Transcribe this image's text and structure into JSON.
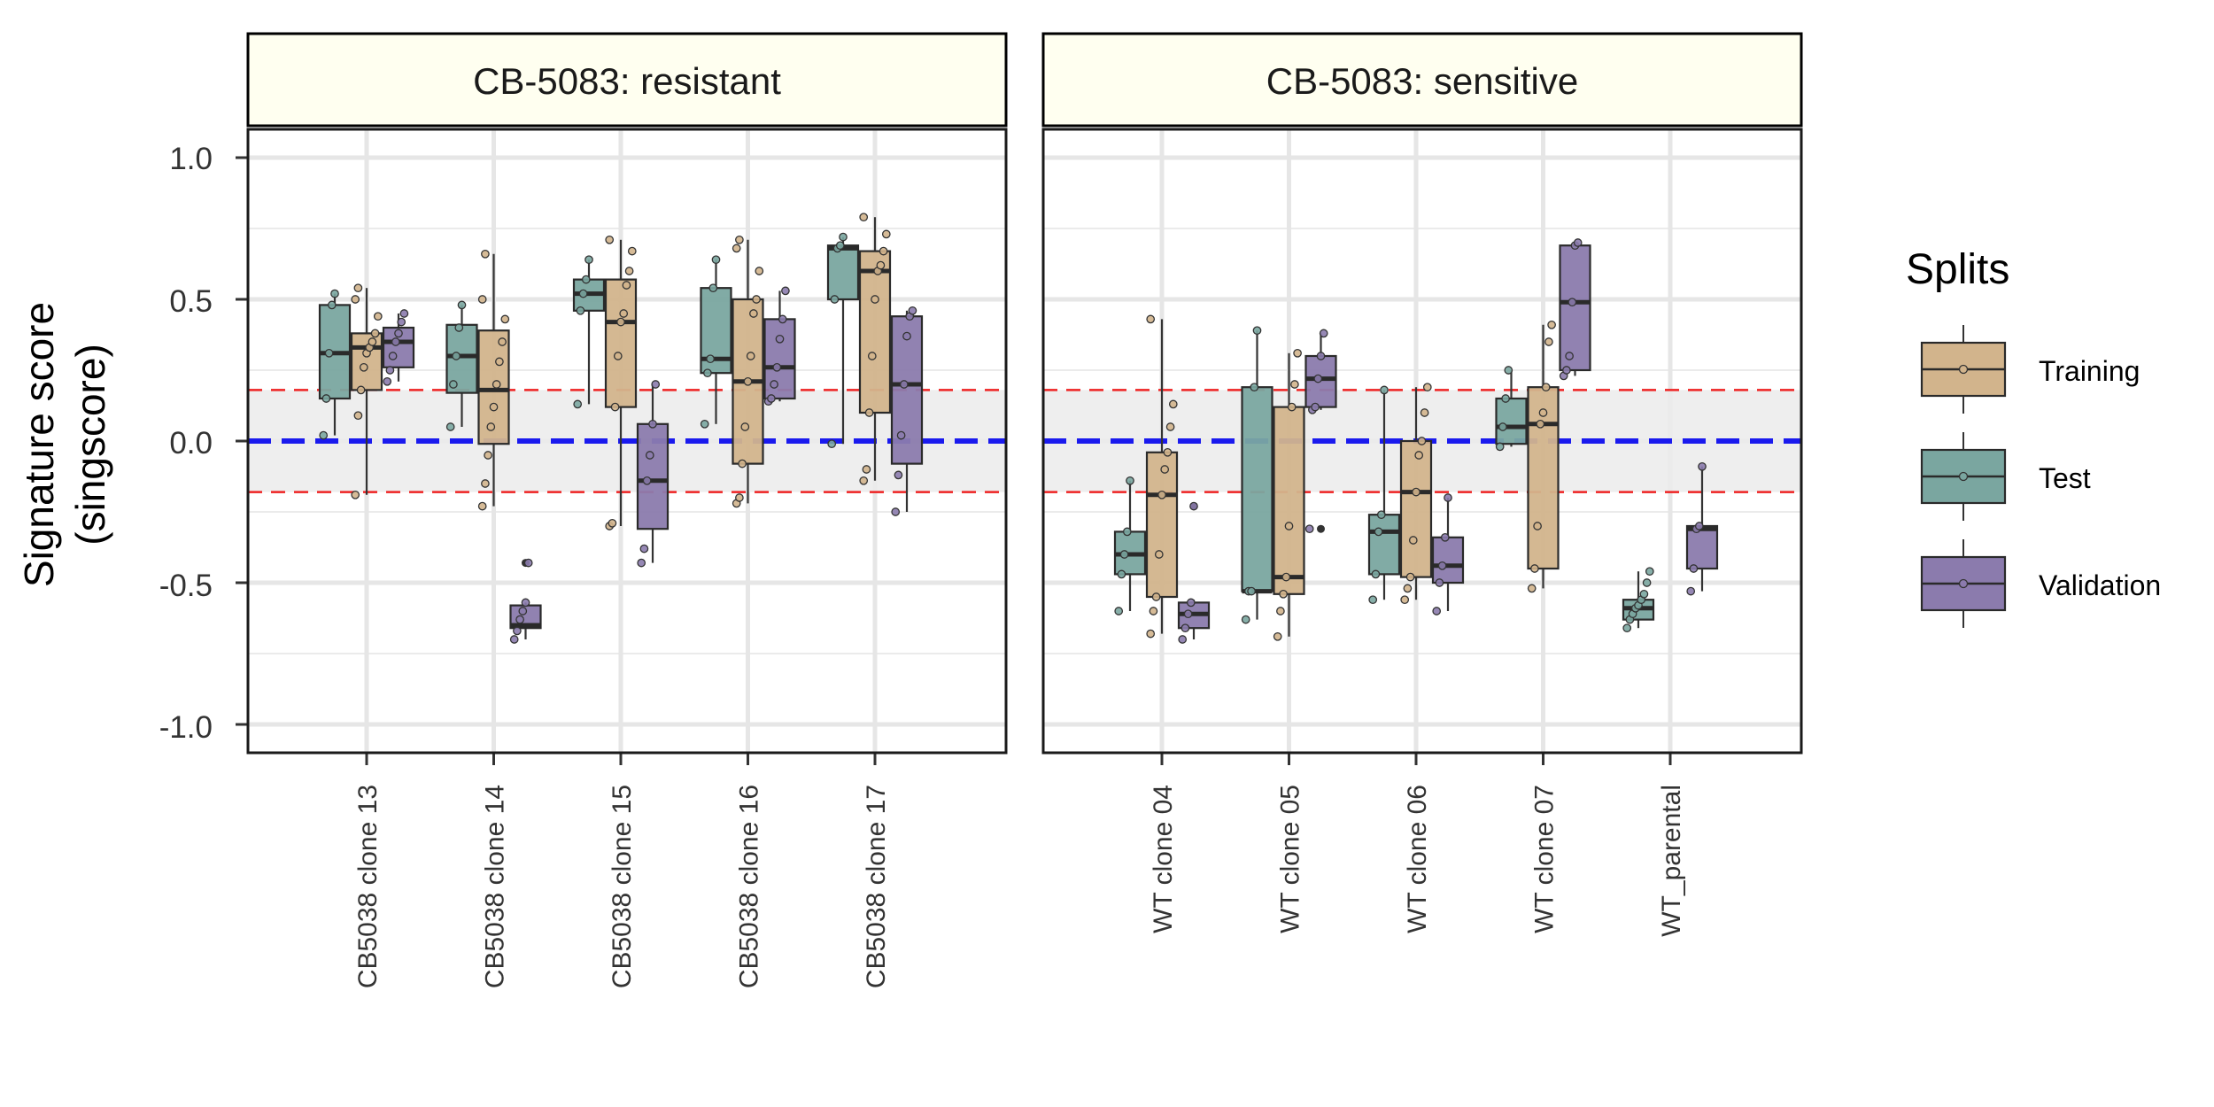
{
  "chart_data": {
    "type": "box",
    "ylabel": "Signature score\n(singscore)",
    "ylabel_lines": [
      "Signature score",
      "(singscore)"
    ],
    "ylim": [
      -1.1,
      1.1
    ],
    "yticks": [
      1.0,
      0.5,
      0.0,
      -0.5,
      -1.0
    ],
    "ytick_labels": [
      "1.0",
      "0.5",
      "0.0",
      "-0.5",
      "-1.0"
    ],
    "reference_band": [
      -0.18,
      0.18
    ],
    "reference_line": 0,
    "legend": {
      "title": "Splits",
      "position": "right",
      "items": [
        {
          "key": "training",
          "label": "Training"
        },
        {
          "key": "test",
          "label": "Test"
        },
        {
          "key": "validation",
          "label": "Validation"
        }
      ]
    },
    "colors": {
      "training": "#d2b48c",
      "test": "#7aa6a0",
      "validation": "#8b7bad",
      "band": "#ebebeb",
      "reference_line": "#1a1aee",
      "band_edges": "#ee2222",
      "strip": "#fffff0"
    },
    "split_order": [
      "test",
      "training",
      "validation"
    ],
    "panels": [
      {
        "title": "CB-5083: resistant",
        "categories": [
          "CB5038 clone 13",
          "CB5038 clone 14",
          "CB5038 clone 15",
          "CB5038 clone 16",
          "CB5038 clone 17"
        ],
        "groups": [
          {
            "test": {
              "box": [
                0.15,
                0.31,
                0.48
              ],
              "whisker": [
                0.02,
                0.52
              ],
              "points": [
                0.02,
                0.15,
                0.31,
                0.48,
                0.52
              ]
            },
            "training": {
              "box": [
                0.18,
                0.33,
                0.38
              ],
              "whisker": [
                -0.19,
                0.54
              ],
              "points": [
                -0.19,
                0.09,
                0.18,
                0.26,
                0.31,
                0.33,
                0.35,
                0.38,
                0.44,
                0.5,
                0.54
              ]
            },
            "validation": {
              "box": [
                0.26,
                0.35,
                0.4
              ],
              "whisker": [
                0.21,
                0.45
              ],
              "points": [
                0.21,
                0.25,
                0.3,
                0.35,
                0.38,
                0.42,
                0.45
              ]
            }
          },
          {
            "test": {
              "box": [
                0.17,
                0.3,
                0.41
              ],
              "whisker": [
                0.05,
                0.48
              ],
              "points": [
                0.05,
                0.2,
                0.3,
                0.4,
                0.48
              ]
            },
            "training": {
              "box": [
                -0.01,
                0.18,
                0.39
              ],
              "whisker": [
                -0.23,
                0.66
              ],
              "points": [
                -0.23,
                -0.15,
                -0.05,
                0.05,
                0.12,
                0.2,
                0.28,
                0.35,
                0.43,
                0.5,
                0.66
              ]
            },
            "validation": {
              "box": [
                -0.66,
                -0.65,
                -0.58
              ],
              "whisker": [
                -0.7,
                -0.57
              ],
              "outliers": [
                -0.43
              ],
              "points": [
                -0.7,
                -0.67,
                -0.63,
                -0.6,
                -0.57,
                -0.43
              ]
            }
          },
          {
            "test": {
              "box": [
                0.46,
                0.52,
                0.57
              ],
              "whisker": [
                0.13,
                0.64
              ],
              "points": [
                0.13,
                0.46,
                0.52,
                0.57,
                0.64
              ]
            },
            "training": {
              "box": [
                0.12,
                0.42,
                0.57
              ],
              "whisker": [
                -0.3,
                0.71
              ],
              "points": [
                -0.3,
                -0.29,
                0.12,
                0.3,
                0.42,
                0.45,
                0.55,
                0.6,
                0.67,
                0.71
              ]
            },
            "validation": {
              "box": [
                -0.31,
                -0.14,
                0.06
              ],
              "whisker": [
                -0.43,
                0.2
              ],
              "points": [
                -0.43,
                -0.38,
                -0.14,
                -0.05,
                0.06,
                0.2
              ]
            }
          },
          {
            "test": {
              "box": [
                0.24,
                0.29,
                0.54
              ],
              "whisker": [
                0.06,
                0.64
              ],
              "points": [
                0.06,
                0.24,
                0.29,
                0.54,
                0.64
              ]
            },
            "training": {
              "box": [
                -0.08,
                0.21,
                0.5
              ],
              "whisker": [
                -0.22,
                0.71
              ],
              "points": [
                -0.22,
                -0.2,
                -0.08,
                0.05,
                0.21,
                0.3,
                0.45,
                0.5,
                0.6,
                0.68,
                0.71
              ]
            },
            "validation": {
              "box": [
                0.15,
                0.26,
                0.43
              ],
              "whisker": [
                0.14,
                0.53
              ],
              "points": [
                0.14,
                0.15,
                0.2,
                0.26,
                0.36,
                0.43,
                0.53
              ]
            }
          },
          {
            "test": {
              "box": [
                0.5,
                0.68,
                0.69
              ],
              "whisker": [
                -0.01,
                0.72
              ],
              "points": [
                -0.01,
                0.5,
                0.68,
                0.69,
                0.72
              ]
            },
            "training": {
              "box": [
                0.1,
                0.6,
                0.67
              ],
              "whisker": [
                -0.14,
                0.79
              ],
              "points": [
                -0.14,
                -0.1,
                0.1,
                0.3,
                0.5,
                0.6,
                0.62,
                0.67,
                0.73,
                0.79
              ]
            },
            "validation": {
              "box": [
                -0.08,
                0.2,
                0.44
              ],
              "whisker": [
                -0.25,
                0.46
              ],
              "points": [
                -0.25,
                -0.12,
                0.02,
                0.2,
                0.37,
                0.44,
                0.46
              ]
            }
          }
        ]
      },
      {
        "title": "CB-5083: sensitive",
        "categories": [
          "WT clone 04",
          "WT clone 05",
          "WT clone 06",
          "WT clone 07",
          "WT_parental"
        ],
        "groups": [
          {
            "test": {
              "box": [
                -0.47,
                -0.4,
                -0.32
              ],
              "whisker": [
                -0.6,
                -0.14
              ],
              "points": [
                -0.6,
                -0.47,
                -0.4,
                -0.32,
                -0.14
              ]
            },
            "training": {
              "box": [
                -0.55,
                -0.19,
                -0.04
              ],
              "whisker": [
                -0.68,
                0.43
              ],
              "points": [
                -0.68,
                -0.6,
                -0.55,
                -0.4,
                -0.19,
                -0.1,
                -0.04,
                0.05,
                0.13,
                0.43
              ]
            },
            "validation": {
              "box": [
                -0.66,
                -0.61,
                -0.57
              ],
              "whisker": [
                -0.7,
                -0.56
              ],
              "outliers": [
                -0.23
              ],
              "points": [
                -0.7,
                -0.66,
                -0.61,
                -0.57,
                -0.23
              ]
            }
          },
          {
            "test": {
              "box": [
                -0.53,
                -0.53,
                0.19
              ],
              "whisker": [
                -0.63,
                0.39
              ],
              "points": [
                -0.63,
                -0.53,
                -0.53,
                0.19,
                0.39
              ]
            },
            "training": {
              "box": [
                -0.54,
                -0.48,
                0.12
              ],
              "whisker": [
                -0.69,
                0.31
              ],
              "points": [
                -0.69,
                -0.6,
                -0.54,
                -0.48,
                -0.3,
                0.12,
                0.2,
                0.31
              ]
            },
            "validation": {
              "box": [
                0.12,
                0.22,
                0.3
              ],
              "whisker": [
                0.11,
                0.38
              ],
              "outliers": [
                -0.31
              ],
              "points": [
                -0.31,
                0.11,
                0.12,
                0.22,
                0.3,
                0.38
              ]
            }
          },
          {
            "test": {
              "box": [
                -0.47,
                -0.32,
                -0.26
              ],
              "whisker": [
                -0.56,
                0.18
              ],
              "points": [
                -0.56,
                -0.47,
                -0.32,
                -0.26,
                0.18
              ]
            },
            "training": {
              "box": [
                -0.48,
                -0.18,
                0.0
              ],
              "whisker": [
                -0.56,
                0.19
              ],
              "points": [
                -0.56,
                -0.52,
                -0.48,
                -0.35,
                -0.18,
                -0.05,
                0.0,
                0.1,
                0.19
              ]
            },
            "validation": {
              "box": [
                -0.5,
                -0.44,
                -0.34
              ],
              "whisker": [
                -0.6,
                -0.2
              ],
              "points": [
                -0.6,
                -0.5,
                -0.44,
                -0.34,
                -0.2
              ]
            }
          },
          {
            "test": {
              "box": [
                -0.01,
                0.05,
                0.15
              ],
              "whisker": [
                -0.02,
                0.25
              ],
              "points": [
                -0.02,
                0.05,
                0.15,
                0.25
              ]
            },
            "training": {
              "box": [
                -0.45,
                0.06,
                0.19
              ],
              "whisker": [
                -0.52,
                0.41
              ],
              "points": [
                -0.52,
                -0.45,
                -0.3,
                0.06,
                0.1,
                0.19,
                0.35,
                0.41
              ]
            },
            "validation": {
              "box": [
                0.25,
                0.49,
                0.69
              ],
              "whisker": [
                0.23,
                0.7
              ],
              "points": [
                0.23,
                0.25,
                0.3,
                0.49,
                0.69,
                0.7
              ]
            }
          },
          {
            "test": {
              "box": [
                -0.63,
                -0.59,
                -0.56
              ],
              "whisker": [
                -0.66,
                -0.46
              ],
              "points": [
                -0.66,
                -0.63,
                -0.61,
                -0.59,
                -0.58,
                -0.56,
                -0.54,
                -0.5,
                -0.46
              ]
            },
            "validation": {
              "box": [
                -0.45,
                -0.31,
                -0.3
              ],
              "whisker": [
                -0.53,
                -0.09
              ],
              "points": [
                -0.53,
                -0.45,
                -0.31,
                -0.3,
                -0.09
              ]
            }
          }
        ]
      }
    ]
  }
}
